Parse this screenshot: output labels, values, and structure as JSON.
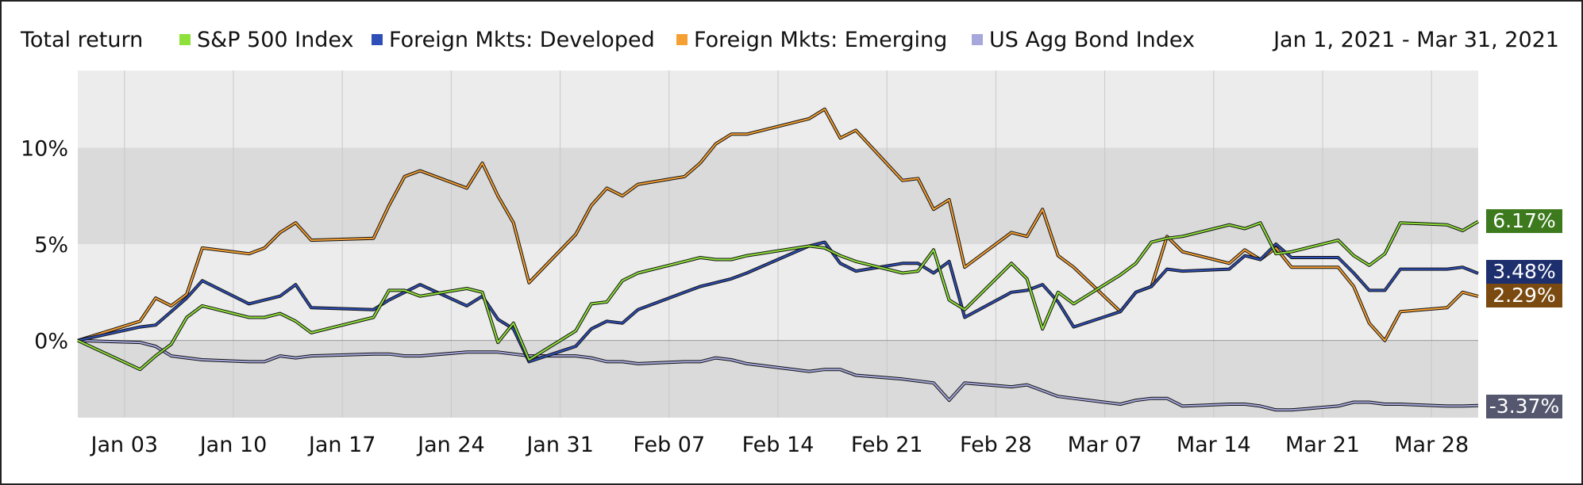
{
  "header": {
    "title": "Total return",
    "date_range": "Jan 1, 2021 - Mar 31, 2021"
  },
  "chart_data": {
    "type": "line",
    "title": "Total return",
    "subtitle": "Jan 1, 2021 - Mar 31, 2021",
    "xlabel": "",
    "ylabel": "",
    "ylim": [
      -4,
      14
    ],
    "xlim": [
      "2020-12-31",
      "2021-03-31"
    ],
    "grid": true,
    "legend": "top",
    "x_ticks": [
      "Jan 03",
      "Jan 10",
      "Jan 17",
      "Jan 24",
      "Jan 31",
      "Feb 07",
      "Feb 14",
      "Feb 21",
      "Feb 28",
      "Mar 07",
      "Mar 14",
      "Mar 21",
      "Mar 28"
    ],
    "y_ticks": [
      "0%",
      "5%",
      "10%"
    ],
    "series": [
      {
        "name": "S&P 500 Index",
        "color": "#8ee03a",
        "end_label": "6.17%",
        "end_label_color": "#3d7a1e",
        "points": [
          [
            "2020-12-31",
            0.0
          ],
          [
            "2021-01-04",
            -1.5
          ],
          [
            "2021-01-05",
            -0.8
          ],
          [
            "2021-01-06",
            -0.2
          ],
          [
            "2021-01-07",
            1.2
          ],
          [
            "2021-01-08",
            1.8
          ],
          [
            "2021-01-11",
            1.2
          ],
          [
            "2021-01-12",
            1.2
          ],
          [
            "2021-01-13",
            1.4
          ],
          [
            "2021-01-14",
            1.0
          ],
          [
            "2021-01-15",
            0.4
          ],
          [
            "2021-01-19",
            1.2
          ],
          [
            "2021-01-20",
            2.6
          ],
          [
            "2021-01-21",
            2.6
          ],
          [
            "2021-01-22",
            2.3
          ],
          [
            "2021-01-25",
            2.7
          ],
          [
            "2021-01-26",
            2.5
          ],
          [
            "2021-01-27",
            -0.1
          ],
          [
            "2021-01-28",
            0.9
          ],
          [
            "2021-01-29",
            -1.0
          ],
          [
            "2021-02-01",
            0.5
          ],
          [
            "2021-02-02",
            1.9
          ],
          [
            "2021-02-03",
            2.0
          ],
          [
            "2021-02-04",
            3.1
          ],
          [
            "2021-02-05",
            3.5
          ],
          [
            "2021-02-08",
            4.1
          ],
          [
            "2021-02-09",
            4.3
          ],
          [
            "2021-02-10",
            4.2
          ],
          [
            "2021-02-11",
            4.2
          ],
          [
            "2021-02-12",
            4.4
          ],
          [
            "2021-02-16",
            4.9
          ],
          [
            "2021-02-17",
            4.8
          ],
          [
            "2021-02-18",
            4.4
          ],
          [
            "2021-02-19",
            4.1
          ],
          [
            "2021-02-22",
            3.5
          ],
          [
            "2021-02-23",
            3.6
          ],
          [
            "2021-02-24",
            4.7
          ],
          [
            "2021-02-25",
            2.1
          ],
          [
            "2021-02-26",
            1.6
          ],
          [
            "2021-03-01",
            4.0
          ],
          [
            "2021-03-02",
            3.2
          ],
          [
            "2021-03-03",
            0.6
          ],
          [
            "2021-03-04",
            2.5
          ],
          [
            "2021-03-05",
            1.9
          ],
          [
            "2021-03-08",
            3.4
          ],
          [
            "2021-03-09",
            4.0
          ],
          [
            "2021-03-10",
            5.1
          ],
          [
            "2021-03-11",
            5.3
          ],
          [
            "2021-03-12",
            5.4
          ],
          [
            "2021-03-15",
            6.0
          ],
          [
            "2021-03-16",
            5.8
          ],
          [
            "2021-03-17",
            6.1
          ],
          [
            "2021-03-18",
            4.5
          ],
          [
            "2021-03-19",
            4.6
          ],
          [
            "2021-03-22",
            5.2
          ],
          [
            "2021-03-23",
            4.4
          ],
          [
            "2021-03-24",
            3.9
          ],
          [
            "2021-03-25",
            4.5
          ],
          [
            "2021-03-26",
            6.1
          ],
          [
            "2021-03-29",
            6.0
          ],
          [
            "2021-03-30",
            5.7
          ],
          [
            "2021-03-31",
            6.17
          ]
        ]
      },
      {
        "name": "Foreign Mkts: Developed",
        "color": "#2f4fb8",
        "end_label": "3.48%",
        "end_label_color": "#1e2f6e",
        "points": [
          [
            "2020-12-31",
            0.0
          ],
          [
            "2021-01-04",
            0.7
          ],
          [
            "2021-01-05",
            0.8
          ],
          [
            "2021-01-06",
            1.5
          ],
          [
            "2021-01-07",
            2.2
          ],
          [
            "2021-01-08",
            3.1
          ],
          [
            "2021-01-11",
            1.9
          ],
          [
            "2021-01-12",
            2.1
          ],
          [
            "2021-01-13",
            2.3
          ],
          [
            "2021-01-14",
            2.9
          ],
          [
            "2021-01-15",
            1.7
          ],
          [
            "2021-01-19",
            1.6
          ],
          [
            "2021-01-20",
            2.1
          ],
          [
            "2021-01-21",
            2.5
          ],
          [
            "2021-01-22",
            2.9
          ],
          [
            "2021-01-25",
            1.8
          ],
          [
            "2021-01-26",
            2.3
          ],
          [
            "2021-01-27",
            1.1
          ],
          [
            "2021-01-28",
            0.6
          ],
          [
            "2021-01-29",
            -1.1
          ],
          [
            "2021-02-01",
            -0.3
          ],
          [
            "2021-02-02",
            0.6
          ],
          [
            "2021-02-03",
            1.0
          ],
          [
            "2021-02-04",
            0.9
          ],
          [
            "2021-02-05",
            1.6
          ],
          [
            "2021-02-08",
            2.5
          ],
          [
            "2021-02-09",
            2.8
          ],
          [
            "2021-02-10",
            3.0
          ],
          [
            "2021-02-11",
            3.2
          ],
          [
            "2021-02-12",
            3.5
          ],
          [
            "2021-02-16",
            4.9
          ],
          [
            "2021-02-17",
            5.1
          ],
          [
            "2021-02-18",
            4.0
          ],
          [
            "2021-02-19",
            3.6
          ],
          [
            "2021-02-22",
            4.0
          ],
          [
            "2021-02-23",
            4.0
          ],
          [
            "2021-02-24",
            3.5
          ],
          [
            "2021-02-25",
            4.1
          ],
          [
            "2021-02-26",
            1.2
          ],
          [
            "2021-03-01",
            2.5
          ],
          [
            "2021-03-02",
            2.6
          ],
          [
            "2021-03-03",
            2.9
          ],
          [
            "2021-03-04",
            2.0
          ],
          [
            "2021-03-05",
            0.7
          ],
          [
            "2021-03-08",
            1.5
          ],
          [
            "2021-03-09",
            2.5
          ],
          [
            "2021-03-10",
            2.8
          ],
          [
            "2021-03-11",
            3.7
          ],
          [
            "2021-03-12",
            3.6
          ],
          [
            "2021-03-15",
            3.7
          ],
          [
            "2021-03-16",
            4.4
          ],
          [
            "2021-03-17",
            4.2
          ],
          [
            "2021-03-18",
            5.0
          ],
          [
            "2021-03-19",
            4.3
          ],
          [
            "2021-03-22",
            4.3
          ],
          [
            "2021-03-23",
            3.5
          ],
          [
            "2021-03-24",
            2.6
          ],
          [
            "2021-03-25",
            2.6
          ],
          [
            "2021-03-26",
            3.7
          ],
          [
            "2021-03-29",
            3.7
          ],
          [
            "2021-03-30",
            3.8
          ],
          [
            "2021-03-31",
            3.48
          ]
        ]
      },
      {
        "name": "Foreign Mkts: Emerging",
        "color": "#f5a033",
        "end_label": "2.29%",
        "end_label_color": "#7a4a10",
        "points": [
          [
            "2020-12-31",
            0.0
          ],
          [
            "2021-01-04",
            1.0
          ],
          [
            "2021-01-05",
            2.2
          ],
          [
            "2021-01-06",
            1.8
          ],
          [
            "2021-01-07",
            2.4
          ],
          [
            "2021-01-08",
            4.8
          ],
          [
            "2021-01-11",
            4.5
          ],
          [
            "2021-01-12",
            4.8
          ],
          [
            "2021-01-13",
            5.6
          ],
          [
            "2021-01-14",
            6.1
          ],
          [
            "2021-01-15",
            5.2
          ],
          [
            "2021-01-19",
            5.3
          ],
          [
            "2021-01-20",
            7.0
          ],
          [
            "2021-01-21",
            8.5
          ],
          [
            "2021-01-22",
            8.8
          ],
          [
            "2021-01-25",
            7.9
          ],
          [
            "2021-01-26",
            9.2
          ],
          [
            "2021-01-27",
            7.5
          ],
          [
            "2021-01-28",
            6.1
          ],
          [
            "2021-01-29",
            3.0
          ],
          [
            "2021-02-01",
            5.5
          ],
          [
            "2021-02-02",
            7.0
          ],
          [
            "2021-02-03",
            7.9
          ],
          [
            "2021-02-04",
            7.5
          ],
          [
            "2021-02-05",
            8.1
          ],
          [
            "2021-02-08",
            8.5
          ],
          [
            "2021-02-09",
            9.2
          ],
          [
            "2021-02-10",
            10.2
          ],
          [
            "2021-02-11",
            10.7
          ],
          [
            "2021-02-12",
            10.7
          ],
          [
            "2021-02-16",
            11.5
          ],
          [
            "2021-02-17",
            12.0
          ],
          [
            "2021-02-18",
            10.5
          ],
          [
            "2021-02-19",
            10.9
          ],
          [
            "2021-02-22",
            8.3
          ],
          [
            "2021-02-23",
            8.4
          ],
          [
            "2021-02-24",
            6.8
          ],
          [
            "2021-02-25",
            7.3
          ],
          [
            "2021-02-26",
            3.8
          ],
          [
            "2021-03-01",
            5.6
          ],
          [
            "2021-03-02",
            5.4
          ],
          [
            "2021-03-03",
            6.8
          ],
          [
            "2021-03-04",
            4.4
          ],
          [
            "2021-03-05",
            3.8
          ],
          [
            "2021-03-08",
            1.5
          ],
          [
            "2021-03-09",
            2.5
          ],
          [
            "2021-03-10",
            2.8
          ],
          [
            "2021-03-11",
            5.4
          ],
          [
            "2021-03-12",
            4.6
          ],
          [
            "2021-03-15",
            4.0
          ],
          [
            "2021-03-16",
            4.7
          ],
          [
            "2021-03-17",
            4.2
          ],
          [
            "2021-03-18",
            4.8
          ],
          [
            "2021-03-19",
            3.8
          ],
          [
            "2021-03-22",
            3.8
          ],
          [
            "2021-03-23",
            2.8
          ],
          [
            "2021-03-24",
            0.9
          ],
          [
            "2021-03-25",
            0.0
          ],
          [
            "2021-03-26",
            1.5
          ],
          [
            "2021-03-29",
            1.7
          ],
          [
            "2021-03-30",
            2.5
          ],
          [
            "2021-03-31",
            2.29
          ]
        ]
      },
      {
        "name": "US Agg Bond Index",
        "color": "#a6a8dc",
        "end_label": "-3.37%",
        "end_label_color": "#55576e",
        "points": [
          [
            "2020-12-31",
            0.0
          ],
          [
            "2021-01-04",
            -0.1
          ],
          [
            "2021-01-05",
            -0.3
          ],
          [
            "2021-01-06",
            -0.8
          ],
          [
            "2021-01-07",
            -0.9
          ],
          [
            "2021-01-08",
            -1.0
          ],
          [
            "2021-01-11",
            -1.1
          ],
          [
            "2021-01-12",
            -1.1
          ],
          [
            "2021-01-13",
            -0.8
          ],
          [
            "2021-01-14",
            -0.9
          ],
          [
            "2021-01-15",
            -0.8
          ],
          [
            "2021-01-19",
            -0.7
          ],
          [
            "2021-01-20",
            -0.7
          ],
          [
            "2021-01-21",
            -0.8
          ],
          [
            "2021-01-22",
            -0.8
          ],
          [
            "2021-01-25",
            -0.6
          ],
          [
            "2021-01-26",
            -0.6
          ],
          [
            "2021-01-27",
            -0.6
          ],
          [
            "2021-01-28",
            -0.7
          ],
          [
            "2021-01-29",
            -0.8
          ],
          [
            "2021-02-01",
            -0.8
          ],
          [
            "2021-02-02",
            -0.9
          ],
          [
            "2021-02-03",
            -1.1
          ],
          [
            "2021-02-04",
            -1.1
          ],
          [
            "2021-02-05",
            -1.2
          ],
          [
            "2021-02-08",
            -1.1
          ],
          [
            "2021-02-09",
            -1.1
          ],
          [
            "2021-02-10",
            -0.9
          ],
          [
            "2021-02-11",
            -1.0
          ],
          [
            "2021-02-12",
            -1.2
          ],
          [
            "2021-02-16",
            -1.6
          ],
          [
            "2021-02-17",
            -1.5
          ],
          [
            "2021-02-18",
            -1.5
          ],
          [
            "2021-02-19",
            -1.8
          ],
          [
            "2021-02-22",
            -2.0
          ],
          [
            "2021-02-23",
            -2.1
          ],
          [
            "2021-02-24",
            -2.2
          ],
          [
            "2021-02-25",
            -3.1
          ],
          [
            "2021-02-26",
            -2.2
          ],
          [
            "2021-03-01",
            -2.4
          ],
          [
            "2021-03-02",
            -2.3
          ],
          [
            "2021-03-03",
            -2.6
          ],
          [
            "2021-03-04",
            -2.9
          ],
          [
            "2021-03-05",
            -3.0
          ],
          [
            "2021-03-08",
            -3.3
          ],
          [
            "2021-03-09",
            -3.1
          ],
          [
            "2021-03-10",
            -3.0
          ],
          [
            "2021-03-11",
            -3.0
          ],
          [
            "2021-03-12",
            -3.4
          ],
          [
            "2021-03-15",
            -3.3
          ],
          [
            "2021-03-16",
            -3.3
          ],
          [
            "2021-03-17",
            -3.4
          ],
          [
            "2021-03-18",
            -3.6
          ],
          [
            "2021-03-19",
            -3.6
          ],
          [
            "2021-03-22",
            -3.4
          ],
          [
            "2021-03-23",
            -3.2
          ],
          [
            "2021-03-24",
            -3.2
          ],
          [
            "2021-03-25",
            -3.3
          ],
          [
            "2021-03-26",
            -3.3
          ],
          [
            "2021-03-29",
            -3.4
          ],
          [
            "2021-03-30",
            -3.4
          ],
          [
            "2021-03-31",
            -3.37
          ]
        ]
      }
    ]
  }
}
